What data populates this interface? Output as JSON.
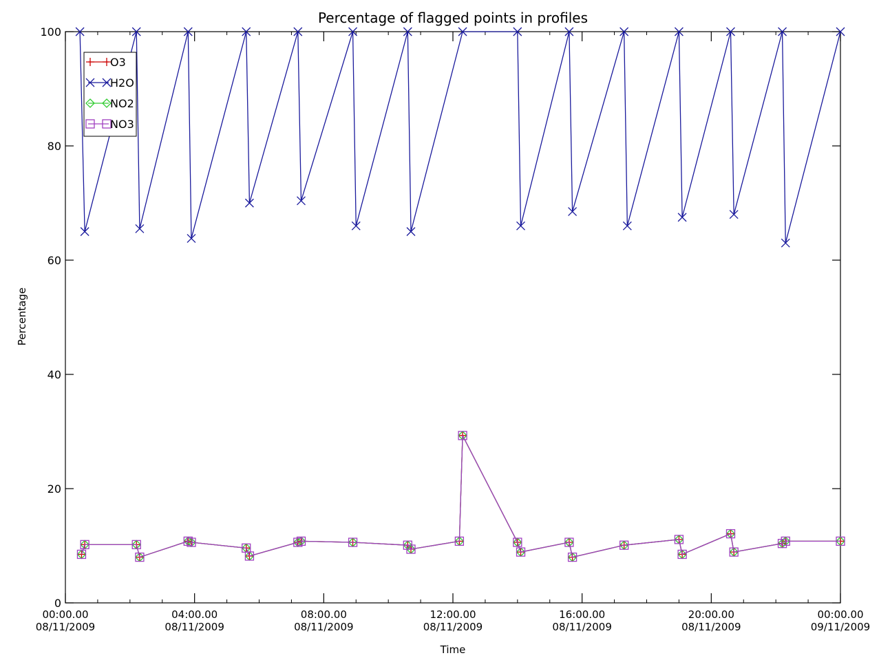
{
  "chart_data": {
    "type": "line",
    "title": "Percentage of flagged points in profiles",
    "xlabel": "Time",
    "ylabel": "Percentage",
    "ylim": [
      0,
      100
    ],
    "xlim": [
      "08/11/2009 00:00:00",
      "09/11/2009 00:00:00"
    ],
    "grid": false,
    "legend_position": "top-left",
    "x_tick_labels": [
      {
        "time": "00:00.00",
        "date": "08/11/2009"
      },
      {
        "time": "04:00.00",
        "date": "08/11/2009"
      },
      {
        "time": "08:00.00",
        "date": "08/11/2009"
      },
      {
        "time": "12:00.00",
        "date": "08/11/2009"
      },
      {
        "time": "16:00.00",
        "date": "08/11/2009"
      },
      {
        "time": "20:00.00",
        "date": "08/11/2009"
      },
      {
        "time": "00:00.00",
        "date": "09/11/2009"
      }
    ],
    "x_tick_hours": [
      0,
      4,
      8,
      12,
      16,
      20,
      24
    ],
    "y_ticks": [
      0,
      20,
      40,
      60,
      80,
      100
    ],
    "series": [
      {
        "name": "O3",
        "color": "#cc0000",
        "marker": "plus",
        "points": [
          [
            0.5,
            8.5
          ],
          [
            0.6,
            10.2
          ],
          [
            2.2,
            10.2
          ],
          [
            2.3,
            8.0
          ],
          [
            3.8,
            10.8
          ],
          [
            3.9,
            10.6
          ],
          [
            5.6,
            9.6
          ],
          [
            5.7,
            8.2
          ],
          [
            7.2,
            10.6
          ],
          [
            7.3,
            10.8
          ],
          [
            8.9,
            10.6
          ],
          [
            10.6,
            10.1
          ],
          [
            10.7,
            9.4
          ],
          [
            12.2,
            10.8
          ],
          [
            12.3,
            29.3
          ],
          [
            14.0,
            10.6
          ],
          [
            14.1,
            8.9
          ],
          [
            15.6,
            10.6
          ],
          [
            15.7,
            8.0
          ],
          [
            17.3,
            10.1
          ],
          [
            19.0,
            11.1
          ],
          [
            19.1,
            8.5
          ],
          [
            20.6,
            12.1
          ],
          [
            20.7,
            8.9
          ],
          [
            22.2,
            10.4
          ],
          [
            22.3,
            10.8
          ],
          [
            24.0,
            10.8
          ]
        ]
      },
      {
        "name": "H2O",
        "color": "#1a1a9c",
        "marker": "x",
        "points": [
          [
            0.45,
            100
          ],
          [
            0.6,
            65.0
          ],
          [
            2.2,
            100
          ],
          [
            2.3,
            65.5
          ],
          [
            3.8,
            100
          ],
          [
            3.9,
            63.8
          ],
          [
            5.6,
            100
          ],
          [
            5.7,
            70.0
          ],
          [
            7.2,
            100
          ],
          [
            7.3,
            70.4
          ],
          [
            8.9,
            100
          ],
          [
            9.0,
            66.0
          ],
          [
            10.6,
            100
          ],
          [
            10.7,
            65.0
          ],
          [
            12.3,
            100
          ],
          [
            14.0,
            100
          ],
          [
            14.1,
            66.0
          ],
          [
            15.6,
            100
          ],
          [
            15.7,
            68.5
          ],
          [
            17.3,
            100
          ],
          [
            17.4,
            66.0
          ],
          [
            19.0,
            100
          ],
          [
            19.1,
            67.5
          ],
          [
            20.6,
            100
          ],
          [
            20.7,
            68.0
          ],
          [
            22.2,
            100
          ],
          [
            22.3,
            63.0
          ],
          [
            24.0,
            100
          ]
        ]
      },
      {
        "name": "NO2",
        "color": "#33cc33",
        "marker": "diamond",
        "points": [
          [
            0.5,
            8.5
          ],
          [
            0.6,
            10.2
          ],
          [
            2.2,
            10.2
          ],
          [
            2.3,
            8.0
          ],
          [
            3.8,
            10.8
          ],
          [
            3.9,
            10.6
          ],
          [
            5.6,
            9.6
          ],
          [
            5.7,
            8.2
          ],
          [
            7.2,
            10.6
          ],
          [
            7.3,
            10.8
          ],
          [
            8.9,
            10.6
          ],
          [
            10.6,
            10.1
          ],
          [
            10.7,
            9.4
          ],
          [
            12.2,
            10.8
          ],
          [
            12.3,
            29.3
          ],
          [
            14.0,
            10.6
          ],
          [
            14.1,
            8.9
          ],
          [
            15.6,
            10.6
          ],
          [
            15.7,
            8.0
          ],
          [
            17.3,
            10.1
          ],
          [
            19.0,
            11.1
          ],
          [
            19.1,
            8.5
          ],
          [
            20.6,
            12.1
          ],
          [
            20.7,
            8.9
          ],
          [
            22.2,
            10.4
          ],
          [
            22.3,
            10.8
          ],
          [
            24.0,
            10.8
          ]
        ]
      },
      {
        "name": "NO3",
        "color": "#a040c0",
        "marker": "square",
        "points": [
          [
            0.5,
            8.5
          ],
          [
            0.6,
            10.2
          ],
          [
            2.2,
            10.2
          ],
          [
            2.3,
            8.0
          ],
          [
            3.8,
            10.8
          ],
          [
            3.9,
            10.6
          ],
          [
            5.6,
            9.6
          ],
          [
            5.7,
            8.2
          ],
          [
            7.2,
            10.6
          ],
          [
            7.3,
            10.8
          ],
          [
            8.9,
            10.6
          ],
          [
            10.6,
            10.1
          ],
          [
            10.7,
            9.4
          ],
          [
            12.2,
            10.8
          ],
          [
            12.3,
            29.3
          ],
          [
            14.0,
            10.6
          ],
          [
            14.1,
            8.9
          ],
          [
            15.6,
            10.6
          ],
          [
            15.7,
            8.0
          ],
          [
            17.3,
            10.1
          ],
          [
            19.0,
            11.1
          ],
          [
            19.1,
            8.5
          ],
          [
            20.6,
            12.1
          ],
          [
            20.7,
            8.9
          ],
          [
            22.2,
            10.4
          ],
          [
            22.3,
            10.8
          ],
          [
            24.0,
            10.8
          ]
        ]
      }
    ]
  }
}
